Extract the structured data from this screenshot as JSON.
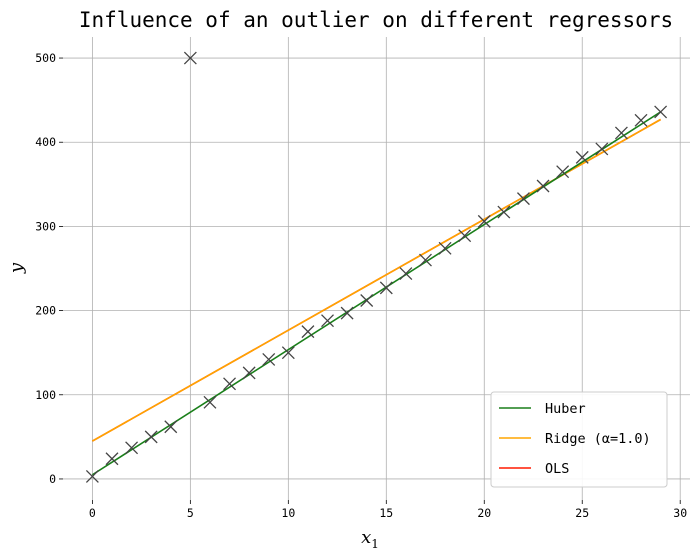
{
  "chart_data": {
    "type": "scatter",
    "title": "Influence of an outlier on different regressors",
    "xlabel": "x",
    "xlabel_sub": "1",
    "ylabel": "y",
    "xlim": [
      -1.5,
      30.5
    ],
    "ylim": [
      -25,
      525
    ],
    "xticks": [
      0,
      5,
      10,
      15,
      20,
      25,
      30
    ],
    "yticks": [
      0,
      100,
      200,
      300,
      400,
      500
    ],
    "grid": true,
    "legend_position": "bottom-right",
    "points": {
      "marker": "x",
      "color": "#444444",
      "x": [
        0,
        1,
        2,
        3,
        4,
        5,
        6,
        7,
        8,
        9,
        10,
        11,
        12,
        13,
        14,
        15,
        16,
        17,
        18,
        19,
        20,
        21,
        22,
        23,
        24,
        25,
        26,
        27,
        28,
        29
      ],
      "y": [
        3,
        24,
        37,
        50,
        62,
        500,
        91,
        113,
        126,
        142,
        150,
        175,
        188,
        197,
        212,
        227,
        244,
        260,
        274,
        289,
        306,
        317,
        333,
        348,
        365,
        382,
        392,
        411,
        426,
        436
      ]
    },
    "series": [
      {
        "name": "Huber",
        "color": "#1a7f1a",
        "x": [
          0,
          29
        ],
        "y": [
          5,
          436
        ]
      },
      {
        "name": "Ridge (α=1.0)",
        "color": "#ffa500",
        "x": [
          0,
          29
        ],
        "y": [
          45,
          427
        ]
      },
      {
        "name": "OLS",
        "color": "#ff1a00",
        "x": [
          0,
          29
        ],
        "y": [
          45,
          427
        ]
      }
    ]
  }
}
